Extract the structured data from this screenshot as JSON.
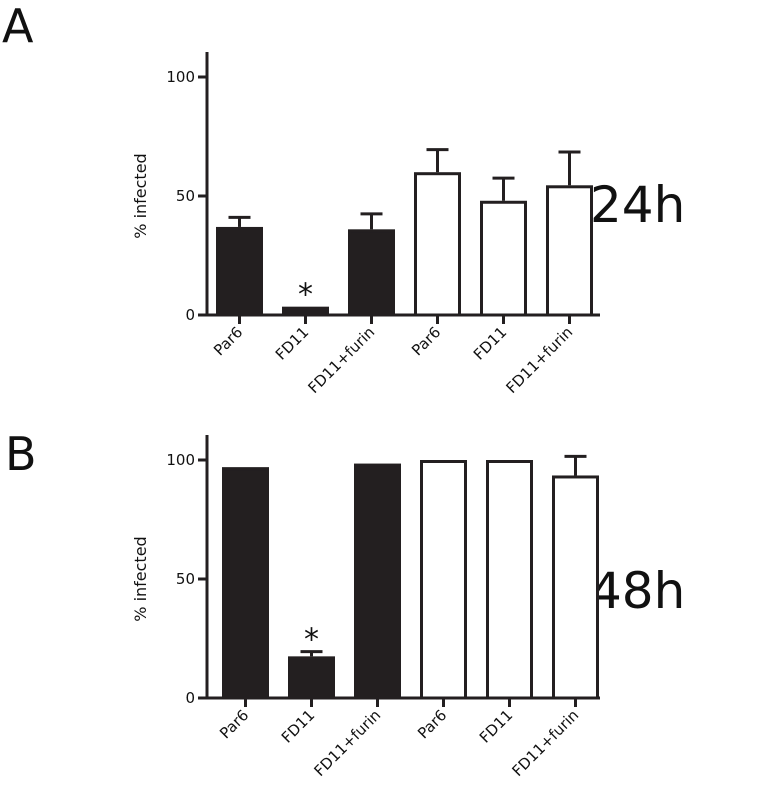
{
  "chart_data": [
    {
      "type": "bar",
      "panel": "A",
      "time_label": "24h",
      "ylabel": "% infected",
      "ylim": [
        0,
        100
      ],
      "yticks": [
        0,
        50,
        100
      ],
      "categories": [
        "Par6",
        "FD11",
        "FD11+furin",
        "Par6",
        "FD11",
        "FD11+furin"
      ],
      "values": [
        37,
        3.5,
        36,
        60,
        48,
        54.5
      ],
      "errors": [
        4,
        0,
        6.5,
        9.5,
        9.5,
        14
      ],
      "fills": [
        "#231f20",
        "#231f20",
        "#231f20",
        "#ffffff",
        "#ffffff",
        "#ffffff"
      ],
      "annotations": [
        {
          "index": 1,
          "text": "*"
        }
      ]
    },
    {
      "type": "bar",
      "panel": "B",
      "time_label": "48h",
      "ylabel": "% infected",
      "ylim": [
        0,
        100
      ],
      "yticks": [
        0,
        50,
        100
      ],
      "categories": [
        "Par6",
        "FD11",
        "FD11+furin",
        "Par6",
        "FD11",
        "FD11+furin"
      ],
      "values": [
        97,
        17.5,
        98.5,
        100,
        100,
        93.5
      ],
      "errors": [
        0,
        2,
        0,
        0,
        0,
        8
      ],
      "fills": [
        "#231f20",
        "#231f20",
        "#231f20",
        "#ffffff",
        "#ffffff",
        "#ffffff"
      ],
      "annotations": [
        {
          "index": 1,
          "text": "*"
        }
      ]
    }
  ]
}
